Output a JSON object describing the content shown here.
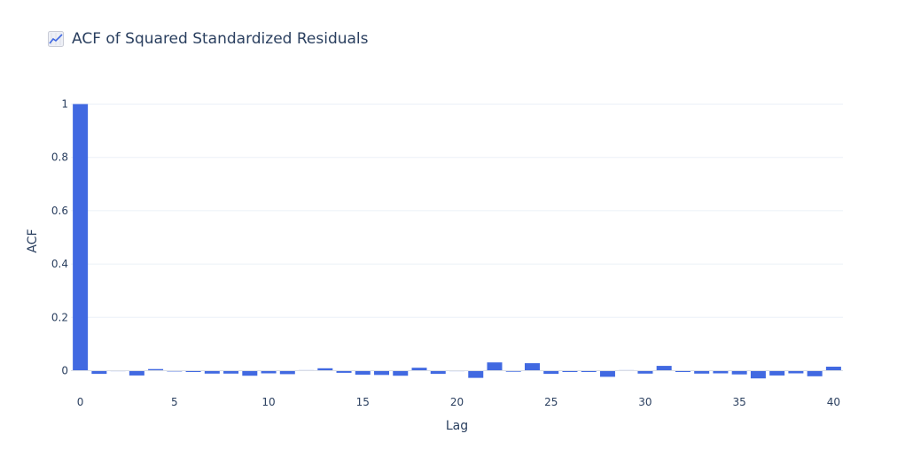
{
  "title": "ACF of Squared Standardized Residuals",
  "title_icon": "chart-increasing-icon",
  "colors": {
    "bar": "#4169e1",
    "grid": "#ebf0f8",
    "text": "#2a3f5f",
    "zero_line": "#d9dde6"
  },
  "chart_data": {
    "type": "bar",
    "title": "ACF of Squared Standardized Residuals",
    "xlabel": "Lag",
    "ylabel": "ACF",
    "xlim": [
      -0.5,
      40.5
    ],
    "ylim": [
      -0.035,
      1.0
    ],
    "x_ticks": [
      0,
      5,
      10,
      15,
      20,
      25,
      30,
      35,
      40
    ],
    "y_ticks": [
      0,
      0.2,
      0.4,
      0.6,
      0.8,
      1
    ],
    "y_tick_labels": [
      "0",
      "0.2",
      "0.4",
      "0.6",
      "0.8",
      "1"
    ],
    "grid": true,
    "legend": "none",
    "x": [
      0,
      1,
      2,
      3,
      4,
      5,
      6,
      7,
      8,
      9,
      10,
      11,
      12,
      13,
      14,
      15,
      16,
      17,
      18,
      19,
      20,
      21,
      22,
      23,
      24,
      25,
      26,
      27,
      28,
      29,
      30,
      31,
      32,
      33,
      34,
      35,
      36,
      37,
      38,
      39,
      40
    ],
    "values": [
      1.0,
      -0.012,
      -0.001,
      -0.018,
      0.006,
      -0.003,
      -0.005,
      -0.011,
      -0.011,
      -0.019,
      -0.01,
      -0.013,
      0.002,
      0.009,
      -0.008,
      -0.015,
      -0.016,
      -0.019,
      0.011,
      -0.012,
      -0.001,
      -0.027,
      0.031,
      -0.004,
      0.028,
      -0.012,
      -0.005,
      -0.005,
      -0.023,
      0.002,
      -0.011,
      0.018,
      -0.005,
      -0.011,
      -0.01,
      -0.014,
      -0.029,
      -0.018,
      -0.01,
      -0.021,
      0.015
    ]
  }
}
